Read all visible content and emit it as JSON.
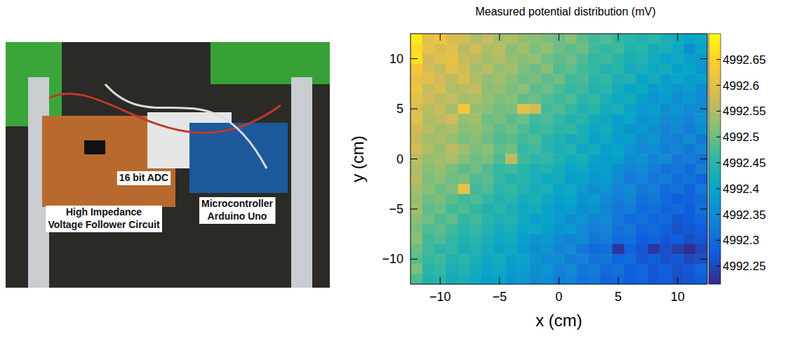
{
  "chart_data": {
    "type": "heatmap",
    "title": "Measured potential distribution (mV)",
    "x_label": "x (cm)",
    "y_label": "y (cm)",
    "xlim": [
      -12.5,
      12.5
    ],
    "ylim": [
      -12.5,
      12.5
    ],
    "xticks": [
      {
        "value": -10,
        "label": "−10"
      },
      {
        "value": -5,
        "label": "−5"
      },
      0,
      5,
      10
    ],
    "yticks": [
      {
        "value": -10,
        "label": "−10"
      },
      {
        "value": -5,
        "label": "−5"
      },
      0,
      5,
      10
    ],
    "grid": false,
    "x": [
      -12,
      -11,
      -10,
      -9,
      -8,
      -7,
      -6,
      -5,
      -4,
      -3,
      -2,
      -1,
      0,
      1,
      2,
      3,
      4,
      5,
      6,
      7,
      8,
      9,
      10,
      11,
      12
    ],
    "y": [
      12,
      11,
      10,
      9,
      8,
      7,
      6,
      5,
      4,
      3,
      2,
      1,
      0,
      -1,
      -2,
      -3,
      -4,
      -5,
      -6,
      -7,
      -8,
      -9,
      -10,
      -11,
      -12
    ],
    "z": [
      [
        4992.68,
        4992.6,
        4992.62,
        4992.59,
        4992.58,
        4992.55,
        4992.57,
        4992.54,
        4992.55,
        4992.53,
        4992.52,
        4992.51,
        4992.5,
        4992.52,
        4992.49,
        4992.47,
        4992.48,
        4992.46,
        4992.45,
        4992.44,
        4992.45,
        4992.43,
        4992.42,
        4992.4,
        4992.41
      ],
      [
        4992.66,
        4992.61,
        4992.59,
        4992.6,
        4992.56,
        4992.58,
        4992.55,
        4992.56,
        4992.52,
        4992.54,
        4992.51,
        4992.53,
        4992.5,
        4992.49,
        4992.5,
        4992.47,
        4992.46,
        4992.47,
        4992.44,
        4992.45,
        4992.42,
        4992.43,
        4992.41,
        4992.36,
        4992.4
      ],
      [
        4992.67,
        4992.58,
        4992.6,
        4992.61,
        4992.57,
        4992.56,
        4992.54,
        4992.55,
        4992.53,
        4992.52,
        4992.53,
        4992.5,
        4992.49,
        4992.5,
        4992.48,
        4992.46,
        4992.47,
        4992.45,
        4992.43,
        4992.44,
        4992.42,
        4992.4,
        4992.41,
        4992.39,
        4992.38
      ],
      [
        4992.63,
        4992.59,
        4992.57,
        4992.6,
        4992.58,
        4992.54,
        4992.56,
        4992.53,
        4992.54,
        4992.51,
        4992.5,
        4992.52,
        4992.48,
        4992.49,
        4992.47,
        4992.46,
        4992.44,
        4992.45,
        4992.42,
        4992.43,
        4992.41,
        4992.42,
        4992.39,
        4992.4,
        4992.37
      ],
      [
        4992.61,
        4992.6,
        4992.58,
        4992.56,
        4992.59,
        4992.55,
        4992.53,
        4992.54,
        4992.52,
        4992.5,
        4992.51,
        4992.49,
        4992.5,
        4992.47,
        4992.48,
        4992.45,
        4992.46,
        4992.43,
        4992.44,
        4992.4,
        4992.42,
        4992.39,
        4992.4,
        4992.38,
        4992.39
      ],
      [
        4992.62,
        4992.57,
        4992.59,
        4992.55,
        4992.56,
        4992.57,
        4992.52,
        4992.53,
        4992.51,
        4992.52,
        4992.49,
        4992.5,
        4992.48,
        4992.46,
        4992.47,
        4992.44,
        4992.45,
        4992.42,
        4992.4,
        4992.41,
        4992.38,
        4992.39,
        4992.37,
        4992.38,
        4992.36
      ],
      [
        4992.6,
        4992.58,
        4992.56,
        4992.57,
        4992.54,
        4992.55,
        4992.53,
        4992.51,
        4992.52,
        4992.49,
        4992.5,
        4992.48,
        4992.47,
        4992.48,
        4992.45,
        4992.46,
        4992.43,
        4992.41,
        4992.42,
        4992.39,
        4992.37,
        4992.38,
        4992.36,
        4992.37,
        4992.35
      ],
      [
        4992.59,
        4992.56,
        4992.57,
        4992.54,
        4992.63,
        4992.53,
        4992.52,
        4992.5,
        4992.51,
        4992.6,
        4992.58,
        4992.47,
        4992.48,
        4992.46,
        4992.44,
        4992.45,
        4992.42,
        4992.43,
        4992.4,
        4992.38,
        4992.39,
        4992.36,
        4992.37,
        4992.35,
        4992.36
      ],
      [
        4992.6,
        4992.55,
        4992.56,
        4992.58,
        4992.53,
        4992.54,
        4992.5,
        4992.51,
        4992.49,
        4992.5,
        4992.47,
        4992.48,
        4992.46,
        4992.44,
        4992.45,
        4992.42,
        4992.41,
        4992.39,
        4992.4,
        4992.37,
        4992.38,
        4992.35,
        4992.36,
        4992.34,
        4992.37
      ],
      [
        4992.58,
        4992.56,
        4992.54,
        4992.55,
        4992.52,
        4992.53,
        4992.51,
        4992.49,
        4992.5,
        4992.48,
        4992.46,
        4992.47,
        4992.45,
        4992.46,
        4992.43,
        4992.41,
        4992.42,
        4992.39,
        4992.37,
        4992.38,
        4992.36,
        4992.34,
        4992.35,
        4992.33,
        4992.36
      ],
      [
        4992.57,
        4992.54,
        4992.55,
        4992.53,
        4992.51,
        4992.52,
        4992.5,
        4992.48,
        4992.49,
        4992.47,
        4992.48,
        4992.45,
        4992.44,
        4992.42,
        4992.43,
        4992.4,
        4992.41,
        4992.38,
        4992.39,
        4992.36,
        4992.37,
        4992.34,
        4992.33,
        4992.35,
        4992.32
      ],
      [
        4992.58,
        4992.55,
        4992.53,
        4992.56,
        4992.54,
        4992.51,
        4992.52,
        4992.49,
        4992.5,
        4992.46,
        4992.47,
        4992.45,
        4992.43,
        4992.44,
        4992.41,
        4992.42,
        4992.39,
        4992.4,
        4992.37,
        4992.35,
        4992.36,
        4992.33,
        4992.34,
        4992.32,
        4992.34
      ],
      [
        4992.56,
        4992.53,
        4992.54,
        4992.55,
        4992.52,
        4992.5,
        4992.51,
        4992.48,
        4992.56,
        4992.47,
        4992.45,
        4992.46,
        4992.44,
        4992.42,
        4992.43,
        4992.4,
        4992.38,
        4992.39,
        4992.36,
        4992.37,
        4992.34,
        4992.35,
        4992.32,
        4992.33,
        4992.31
      ],
      [
        4992.55,
        4992.52,
        4992.53,
        4992.51,
        4992.49,
        4992.5,
        4992.48,
        4992.46,
        4992.47,
        4992.45,
        4992.43,
        4992.44,
        4992.42,
        4992.4,
        4992.41,
        4992.38,
        4992.39,
        4992.36,
        4992.34,
        4992.35,
        4992.33,
        4992.31,
        4992.32,
        4992.3,
        4992.33
      ],
      [
        4992.56,
        4992.51,
        4992.52,
        4992.5,
        4992.51,
        4992.48,
        4992.49,
        4992.46,
        4992.44,
        4992.45,
        4992.43,
        4992.41,
        4992.42,
        4992.39,
        4992.4,
        4992.37,
        4992.38,
        4992.35,
        4992.33,
        4992.34,
        4992.32,
        4992.33,
        4992.3,
        4992.31,
        4992.29
      ],
      [
        4992.54,
        4992.52,
        4992.5,
        4992.51,
        4992.61,
        4992.47,
        4992.48,
        4992.45,
        4992.46,
        4992.44,
        4992.42,
        4992.43,
        4992.4,
        4992.41,
        4992.38,
        4992.36,
        4992.37,
        4992.34,
        4992.35,
        4992.32,
        4992.33,
        4992.3,
        4992.31,
        4992.29,
        4992.32
      ],
      [
        4992.53,
        4992.5,
        4992.51,
        4992.49,
        4992.47,
        4992.48,
        4992.46,
        4992.44,
        4992.45,
        4992.42,
        4992.43,
        4992.41,
        4992.39,
        4992.4,
        4992.37,
        4992.38,
        4992.35,
        4992.33,
        4992.34,
        4992.31,
        4992.32,
        4992.3,
        4992.28,
        4992.29,
        4992.3
      ],
      [
        4992.54,
        4992.49,
        4992.5,
        4992.47,
        4992.48,
        4992.46,
        4992.44,
        4992.45,
        4992.43,
        4992.41,
        4992.42,
        4992.4,
        4992.38,
        4992.39,
        4992.36,
        4992.37,
        4992.34,
        4992.32,
        4992.33,
        4992.3,
        4992.31,
        4992.29,
        4992.3,
        4992.28,
        4992.31
      ],
      [
        4992.52,
        4992.5,
        4992.48,
        4992.49,
        4992.46,
        4992.47,
        4992.45,
        4992.43,
        4992.44,
        4992.41,
        4992.39,
        4992.4,
        4992.38,
        4992.36,
        4992.37,
        4992.34,
        4992.35,
        4992.32,
        4992.3,
        4992.31,
        4992.29,
        4992.3,
        4992.27,
        4992.28,
        4992.29
      ],
      [
        4992.51,
        4992.48,
        4992.49,
        4992.47,
        4992.45,
        4992.46,
        4992.44,
        4992.42,
        4992.43,
        4992.4,
        4992.41,
        4992.39,
        4992.37,
        4992.38,
        4992.35,
        4992.33,
        4992.34,
        4992.31,
        4992.32,
        4992.29,
        4992.3,
        4992.28,
        4992.26,
        4992.27,
        4992.28
      ],
      [
        4992.52,
        4992.47,
        4992.48,
        4992.46,
        4992.44,
        4992.45,
        4992.43,
        4992.41,
        4992.42,
        4992.39,
        4992.37,
        4992.38,
        4992.36,
        4992.34,
        4992.35,
        4992.32,
        4992.33,
        4992.3,
        4992.31,
        4992.28,
        4992.29,
        4992.27,
        4992.28,
        4992.26,
        4992.27
      ],
      [
        4992.5,
        4992.47,
        4992.45,
        4992.46,
        4992.43,
        4992.44,
        4992.42,
        4992.4,
        4992.41,
        4992.38,
        4992.36,
        4992.37,
        4992.34,
        4992.35,
        4992.32,
        4992.3,
        4992.31,
        4992.23,
        4992.29,
        4992.27,
        4992.23,
        4992.26,
        4992.24,
        4992.22,
        4992.25
      ],
      [
        4992.49,
        4992.46,
        4992.47,
        4992.44,
        4992.45,
        4992.43,
        4992.41,
        4992.42,
        4992.39,
        4992.4,
        4992.37,
        4992.35,
        4992.36,
        4992.33,
        4992.34,
        4992.31,
        4992.32,
        4992.29,
        4992.3,
        4992.27,
        4992.28,
        4992.26,
        4992.27,
        4992.25,
        4992.26
      ],
      [
        4992.51,
        4992.45,
        4992.46,
        4992.43,
        4992.44,
        4992.42,
        4992.4,
        4992.41,
        4992.38,
        4992.39,
        4992.36,
        4992.37,
        4992.34,
        4992.35,
        4992.32,
        4992.33,
        4992.3,
        4992.31,
        4992.28,
        4992.29,
        4992.27,
        4992.28,
        4992.26,
        4992.27,
        4992.29
      ],
      [
        4992.48,
        4992.44,
        4992.45,
        4992.42,
        4992.43,
        4992.41,
        4992.39,
        4992.4,
        4992.37,
        4992.38,
        4992.35,
        4992.36,
        4992.33,
        4992.34,
        4992.31,
        4992.32,
        4992.29,
        4992.3,
        4992.28,
        4992.29,
        4992.27,
        4992.28,
        4992.26,
        4992.27,
        4992.28
      ]
    ],
    "colorbar": {
      "range": [
        4992.215,
        4992.7
      ],
      "ticks": [
        4992.25,
        4992.3,
        4992.35,
        4992.4,
        4992.45,
        4992.5,
        4992.55,
        4992.6,
        4992.65
      ]
    }
  },
  "photo": {
    "labels": [
      {
        "lines": [
          "16 bit ADC"
        ]
      },
      {
        "lines": [
          "High Impedance",
          "Voltage Follower Circuit"
        ]
      },
      {
        "lines": [
          "Microcontroller",
          "Arduino Uno"
        ]
      }
    ]
  }
}
